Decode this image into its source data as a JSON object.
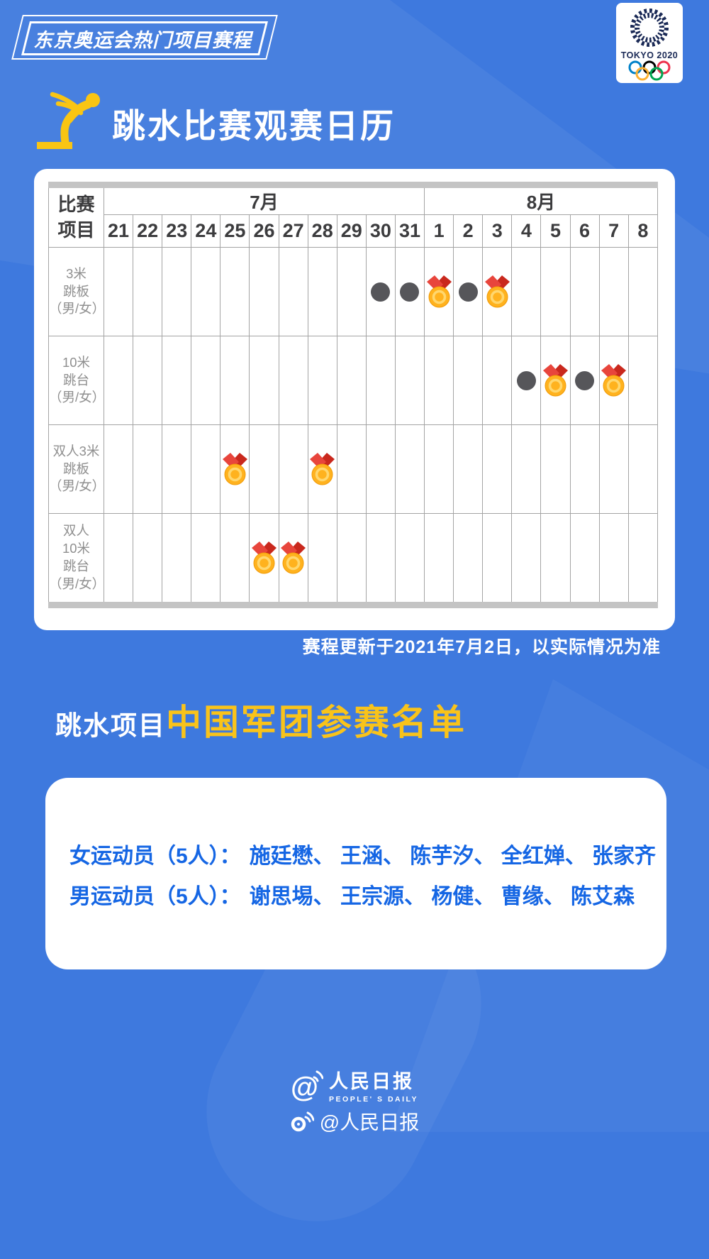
{
  "colors": {
    "background_blue": "#3E79DE",
    "accent_yellow": "#F9C31A",
    "athlete_name_blue": "#1566E4",
    "medal_gold": "#FFB21E",
    "medal_ribbon_red": "#E8453C",
    "session_dot_gray": "#56565A",
    "tokyo_navy": "#1B2A56"
  },
  "header": {
    "ribbon": "东京奥运会热门项目赛程"
  },
  "tokyo_logo": {
    "wordmark": "TOKYO 2020"
  },
  "calendar": {
    "title": "跳水比赛观赛日历",
    "corner_label_lines": [
      "比赛",
      "项目"
    ],
    "months": [
      {
        "label": "7月",
        "days": [
          "21",
          "22",
          "23",
          "24",
          "25",
          "26",
          "27",
          "28",
          "29",
          "30",
          "31"
        ]
      },
      {
        "label": "8月",
        "days": [
          "1",
          "2",
          "3",
          "4",
          "5",
          "6",
          "7",
          "8"
        ]
      }
    ],
    "rows": [
      {
        "label_lines": [
          "3米",
          "跳板",
          "（男/女）"
        ],
        "markers": [
          {
            "month": "7月",
            "day": "30",
            "type": "dot"
          },
          {
            "month": "7月",
            "day": "31",
            "type": "dot"
          },
          {
            "month": "8月",
            "day": "1",
            "type": "medal"
          },
          {
            "month": "8月",
            "day": "2",
            "type": "dot"
          },
          {
            "month": "8月",
            "day": "3",
            "type": "medal"
          }
        ]
      },
      {
        "label_lines": [
          "10米",
          "跳台",
          "（男/女）"
        ],
        "markers": [
          {
            "month": "8月",
            "day": "4",
            "type": "dot"
          },
          {
            "month": "8月",
            "day": "5",
            "type": "medal"
          },
          {
            "month": "8月",
            "day": "6",
            "type": "dot"
          },
          {
            "month": "8月",
            "day": "7",
            "type": "medal"
          }
        ]
      },
      {
        "label_lines": [
          "双人3米",
          "跳板",
          "（男/女）"
        ],
        "markers": [
          {
            "month": "7月",
            "day": "25",
            "type": "medal"
          },
          {
            "month": "7月",
            "day": "28",
            "type": "medal"
          }
        ]
      },
      {
        "label_lines": [
          "双人",
          "10米",
          "跳台",
          "（男/女）"
        ],
        "markers": [
          {
            "month": "7月",
            "day": "26",
            "type": "medal"
          },
          {
            "month": "7月",
            "day": "27",
            "type": "medal"
          }
        ]
      }
    ],
    "note": "赛程更新于2021年7月2日，以实际情况为准"
  },
  "roster": {
    "title_prefix": "跳水项目",
    "title_main": "中国军团参赛名单",
    "name_separator": "、 ",
    "lines": [
      {
        "label": "女运动员（5人）：",
        "names": [
          "施廷懋",
          "王涵",
          "陈芋汐",
          "全红婵",
          "张家齐"
        ]
      },
      {
        "label": "男运动员（5人）：",
        "names": [
          "谢思埸",
          "王宗源",
          "杨健",
          "曹缘",
          "陈艾森"
        ]
      }
    ]
  },
  "footer": {
    "brand_cn": "人民日报",
    "brand_en": "PEOPLE' S DAILY",
    "weibo_handle": "@人民日报"
  }
}
